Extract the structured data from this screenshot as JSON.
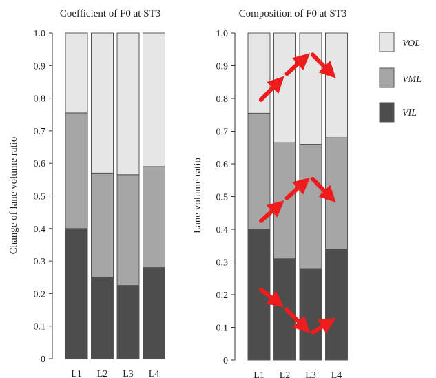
{
  "colors": {
    "VIL": "#4d4d4d",
    "VML": "#a6a6a6",
    "VOL": "#e6e6e6",
    "arrow": "#ee1c1c",
    "axis": "#333333"
  },
  "legend": [
    {
      "key": "VOL",
      "label": "VOL"
    },
    {
      "key": "VML",
      "label": "VML"
    },
    {
      "key": "VIL",
      "label": "VIL"
    }
  ],
  "chart_data": [
    {
      "type": "bar",
      "stacked": true,
      "title": "Coefficient of F0 at ST3",
      "xlabel": "",
      "ylabel": "Change of lane volume ratio",
      "ylim": [
        0,
        1.0
      ],
      "yticks": [
        "0",
        "0.1",
        "0.2",
        "0.3",
        "0.4",
        "0.5",
        "0.6",
        "0.7",
        "0.8",
        "0.9",
        "1.0"
      ],
      "categories": [
        "L1",
        "L2",
        "L3",
        "L4"
      ],
      "series": [
        {
          "name": "VIL",
          "values": [
            0.4,
            0.25,
            0.225,
            0.28
          ]
        },
        {
          "name": "VML",
          "values": [
            0.355,
            0.32,
            0.34,
            0.31
          ]
        },
        {
          "name": "VOL",
          "values": [
            0.245,
            0.43,
            0.435,
            0.41
          ]
        }
      ]
    },
    {
      "type": "bar",
      "stacked": true,
      "title": "Composition of F0 at ST3",
      "xlabel": "",
      "ylabel": "Lane volume ratio",
      "ylim": [
        0,
        1.0
      ],
      "yticks": [
        "0",
        "0.1",
        "0.2",
        "0.3",
        "0.4",
        "0.5",
        "0.6",
        "0.7",
        "0.8",
        "0.9",
        "1.0"
      ],
      "categories": [
        "L1",
        "L2",
        "L3",
        "L4"
      ],
      "series": [
        {
          "name": "VIL",
          "values": [
            0.4,
            0.31,
            0.28,
            0.34
          ]
        },
        {
          "name": "VML",
          "values": [
            0.355,
            0.355,
            0.38,
            0.34
          ]
        },
        {
          "name": "VOL",
          "values": [
            0.245,
            0.335,
            0.34,
            0.32
          ]
        }
      ],
      "annotations": [
        {
          "type": "arrow",
          "from": [
            1,
            0.79
          ],
          "to": [
            2,
            0.87
          ]
        },
        {
          "type": "arrow",
          "from": [
            2,
            0.87
          ],
          "to": [
            3,
            0.94
          ]
        },
        {
          "type": "arrow",
          "from": [
            3,
            0.94
          ],
          "to": [
            4,
            0.86
          ]
        },
        {
          "type": "arrow",
          "from": [
            1,
            0.42
          ],
          "to": [
            2,
            0.49
          ]
        },
        {
          "type": "arrow",
          "from": [
            2,
            0.49
          ],
          "to": [
            3,
            0.56
          ]
        },
        {
          "type": "arrow",
          "from": [
            3,
            0.56
          ],
          "to": [
            4,
            0.48
          ]
        },
        {
          "type": "arrow",
          "from": [
            1,
            0.22
          ],
          "to": [
            2,
            0.16
          ]
        },
        {
          "type": "arrow",
          "from": [
            2,
            0.16
          ],
          "to": [
            3,
            0.08
          ]
        },
        {
          "type": "arrow",
          "from": [
            3,
            0.08
          ],
          "to": [
            4,
            0.13
          ]
        }
      ]
    }
  ]
}
